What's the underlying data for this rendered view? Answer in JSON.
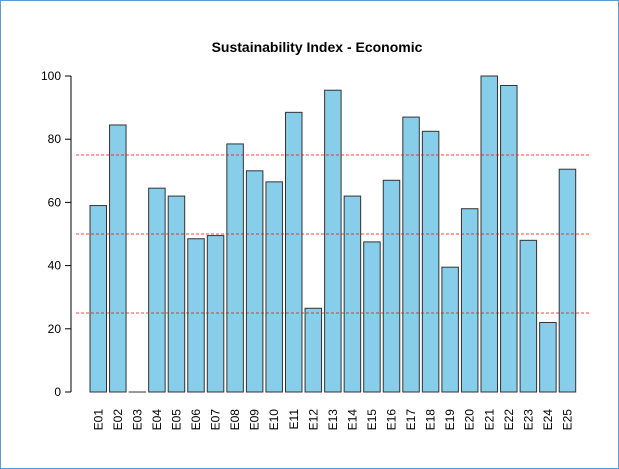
{
  "chart_data": {
    "type": "bar",
    "title": "Sustainability Index - Economic",
    "xlabel": "",
    "ylabel": "",
    "categories": [
      "E01",
      "E02",
      "E03",
      "E04",
      "E05",
      "E06",
      "E07",
      "E08",
      "E09",
      "E10",
      "E11",
      "E12",
      "E13",
      "E14",
      "E15",
      "E16",
      "E17",
      "E18",
      "E19",
      "E20",
      "E21",
      "E22",
      "E23",
      "E24",
      "E25"
    ],
    "values": [
      59,
      84.5,
      0,
      64.5,
      62,
      48.5,
      49.5,
      78.5,
      70,
      66.5,
      88.5,
      26.5,
      95.5,
      62,
      47.5,
      67,
      87,
      82.5,
      39.5,
      58,
      100,
      97,
      48,
      22,
      70.5
    ],
    "ylim": [
      0,
      100
    ],
    "yticks": [
      0,
      20,
      40,
      60,
      80,
      100
    ],
    "reference_lines": [
      25,
      50,
      75
    ],
    "grid": false,
    "colors": {
      "bar_fill": "#87ceeb",
      "bar_stroke": "#333333",
      "reference_line": "#ff0000",
      "frame": "#5b9bd5"
    }
  }
}
